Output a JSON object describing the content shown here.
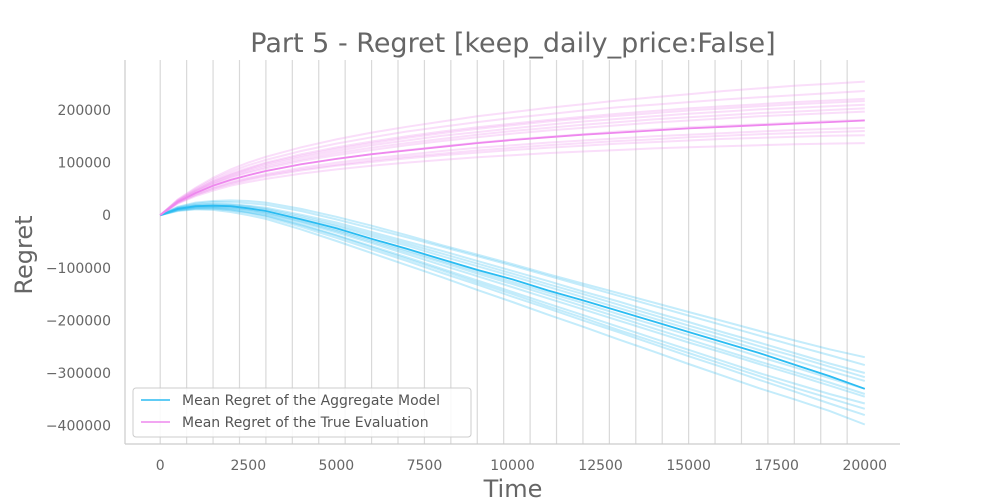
{
  "chart_data": {
    "type": "line",
    "title": "Part 5 - Regret [keep_daily_price:False]",
    "xlabel": "Time",
    "ylabel": "Regret",
    "xlim": [
      -1000,
      21000
    ],
    "ylim": [
      -435000,
      295000
    ],
    "xticks": [
      0,
      2500,
      5000,
      7500,
      10000,
      12500,
      15000,
      17500,
      20000
    ],
    "xtick_labels": [
      "0",
      "2500",
      "5000",
      "7500",
      "10000",
      "12500",
      "15000",
      "17500",
      "20000"
    ],
    "yticks": [
      -400000,
      -300000,
      -200000,
      -100000,
      0,
      100000,
      200000
    ],
    "ytick_labels": [
      "−400000",
      "−300000",
      "−200000",
      "−100000",
      "0",
      "100000",
      "200000"
    ],
    "vertical_grid": true,
    "horizontal_grid": false,
    "legend_position": "lower-left",
    "series": [
      {
        "name": "Mean Regret of the Aggregate Model",
        "color": "#2bbcf2",
        "x": [
          0,
          500,
          1000,
          1500,
          2000,
          2500,
          3000,
          4000,
          5000,
          6000,
          7000,
          8000,
          9000,
          10000,
          11000,
          12000,
          13000,
          14000,
          15000,
          16000,
          17000,
          18000,
          19000,
          20000
        ],
        "values": [
          0,
          12000,
          17000,
          18000,
          17000,
          13000,
          8000,
          -8000,
          -25000,
          -45000,
          -64000,
          -84000,
          -104000,
          -122000,
          -143000,
          -162000,
          -182000,
          -202000,
          -222000,
          -242000,
          -262000,
          -284000,
          -306000,
          -330000
        ],
        "runs": [
          {
            "values": [
              0,
              16000,
              24000,
              27000,
              28000,
              27000,
              24000,
              12000,
              -3000,
              -20000,
              -38000,
              -57000,
              -75000,
              -93000,
              -112000,
              -130000,
              -148000,
              -166000,
              -184000,
              -202000,
              -220000,
              -238000,
              -255000,
              -270000
            ]
          },
          {
            "values": [
              0,
              15000,
              22000,
              25000,
              25000,
              23000,
              20000,
              8000,
              -8000,
              -25000,
              -42000,
              -60000,
              -78000,
              -96000,
              -115000,
              -134000,
              -153000,
              -172000,
              -191000,
              -210000,
              -229000,
              -248000,
              -266000,
              -285000
            ]
          },
          {
            "values": [
              0,
              14000,
              20000,
              22000,
              21000,
              18000,
              14000,
              1000,
              -14000,
              -32000,
              -50000,
              -68000,
              -87000,
              -106000,
              -125000,
              -145000,
              -164000,
              -184000,
              -203000,
              -223000,
              -242000,
              -262000,
              -282000,
              -300000
            ]
          },
          {
            "values": [
              0,
              13000,
              18000,
              19000,
              18000,
              15000,
              10000,
              -5000,
              -21000,
              -40000,
              -58000,
              -78000,
              -97000,
              -116000,
              -136000,
              -156000,
              -176000,
              -196000,
              -216000,
              -236000,
              -256000,
              -276000,
              -296000,
              -315000
            ]
          },
          {
            "values": [
              0,
              12000,
              16000,
              17000,
              15000,
              11000,
              6000,
              -10000,
              -28000,
              -47000,
              -67000,
              -87000,
              -107000,
              -127000,
              -147000,
              -167000,
              -188000,
              -208000,
              -228000,
              -248000,
              -269000,
              -289000,
              -310000,
              -330000
            ]
          },
          {
            "values": [
              0,
              11000,
              15000,
              15000,
              13000,
              9000,
              3000,
              -14000,
              -33000,
              -53000,
              -74000,
              -95000,
              -116000,
              -137000,
              -158000,
              -179000,
              -200000,
              -221000,
              -242000,
              -262000,
              -283000,
              -303000,
              -324000,
              -345000
            ]
          },
          {
            "values": [
              0,
              10000,
              14000,
              14000,
              11000,
              6000,
              0,
              -18000,
              -38000,
              -59000,
              -80000,
              -102000,
              -124000,
              -146000,
              -168000,
              -190000,
              -212000,
              -234000,
              -256000,
              -278000,
              -300000,
              -320000,
              -340000,
              -358000
            ]
          },
          {
            "values": [
              0,
              9000,
              12000,
              12000,
              9000,
              4000,
              -3000,
              -22000,
              -43000,
              -65000,
              -87000,
              -110000,
              -132000,
              -155000,
              -177000,
              -200000,
              -222000,
              -245000,
              -268000,
              -290000,
              -313000,
              -335000,
              -358000,
              -380000
            ]
          },
          {
            "values": [
              0,
              8000,
              11000,
              10000,
              6000,
              0,
              -7000,
              -27000,
              -49000,
              -72000,
              -95000,
              -118000,
              -142000,
              -165000,
              -189000,
              -212000,
              -236000,
              -259000,
              -283000,
              -306000,
              -329000,
              -350000,
              -372000,
              -398000
            ]
          },
          {
            "values": [
              0,
              13000,
              19000,
              21000,
              20000,
              17000,
              12000,
              -2000,
              -18000,
              -36000,
              -54000,
              -73000,
              -92000,
              -111000,
              -131000,
              -150000,
              -170000,
              -190000,
              -210000,
              -229000,
              -249000,
              -268000,
              -288000,
              -308000
            ]
          },
          {
            "values": [
              0,
              11000,
              16000,
              16000,
              14000,
              10000,
              4000,
              -12000,
              -30000,
              -50000,
              -70000,
              -90000,
              -111000,
              -131000,
              -152000,
              -173000,
              -194000,
              -215000,
              -236000,
              -257000,
              -278000,
              -298000,
              -318000,
              -340000
            ]
          },
          {
            "values": [
              0,
              9000,
              13000,
              13000,
              10000,
              5000,
              -1000,
              -19000,
              -39000,
              -61000,
              -83000,
              -105000,
              -128000,
              -150000,
              -173000,
              -195000,
              -218000,
              -240000,
              -262000,
              -284000,
              -306000,
              -328000,
              -348000,
              -368000
            ]
          }
        ]
      },
      {
        "name": "Mean Regret of the True Evaluation",
        "color": "#ee88ee",
        "x": [
          0,
          500,
          1000,
          1500,
          2000,
          2500,
          3000,
          4000,
          5000,
          6000,
          7000,
          8000,
          9000,
          10000,
          11000,
          12000,
          13000,
          14000,
          15000,
          16000,
          17000,
          18000,
          19000,
          20000
        ],
        "values": [
          0,
          25000,
          42000,
          56000,
          67000,
          76000,
          84000,
          97000,
          107000,
          116000,
          123000,
          130000,
          137000,
          143000,
          148000,
          153000,
          157000,
          161000,
          165000,
          168000,
          171000,
          174000,
          177000,
          180000
        ],
        "runs": [
          {
            "values": [
              0,
              22000,
              36000,
              47000,
              56000,
              63000,
              69000,
              79000,
              87000,
              94000,
              100000,
              105000,
              110000,
              114000,
              118000,
              121000,
              124000,
              127000,
              129000,
              131000,
              133000,
              135000,
              136000,
              137000
            ]
          },
          {
            "values": [
              0,
              23000,
              38000,
              50000,
              59000,
              67000,
              74000,
              85000,
              94000,
              101000,
              108000,
              114000,
              119000,
              124000,
              128000,
              132000,
              136000,
              139000,
              142000,
              145000,
              147000,
              149000,
              151000,
              152000
            ]
          },
          {
            "values": [
              0,
              24000,
              40000,
              53000,
              63000,
              71000,
              78000,
              90000,
              100000,
              108000,
              115000,
              122000,
              128000,
              133000,
              138000,
              142000,
              146000,
              150000,
              153000,
              156000,
              159000,
              162000,
              164000,
              166000
            ]
          },
          {
            "values": [
              0,
              25000,
              42000,
              56000,
              67000,
              76000,
              84000,
              97000,
              107000,
              116000,
              124000,
              131000,
              138000,
              144000,
              149000,
              154000,
              159000,
              163000,
              167000,
              170000,
              173000,
              176000,
              179000,
              181000
            ]
          },
          {
            "values": [
              0,
              26000,
              44000,
              59000,
              71000,
              81000,
              89000,
              103000,
              114000,
              124000,
              133000,
              141000,
              148000,
              155000,
              161000,
              166000,
              171000,
              176000,
              180000,
              184000,
              188000,
              191000,
              194000,
              197000
            ]
          },
          {
            "values": [
              0,
              27000,
              46000,
              62000,
              75000,
              86000,
              95000,
              110000,
              122000,
              133000,
              142000,
              151000,
              158000,
              165000,
              172000,
              178000,
              183000,
              188000,
              193000,
              197000,
              201000,
              204000,
              207000,
              210000
            ]
          },
          {
            "values": [
              0,
              28000,
              48000,
              65000,
              79000,
              90000,
              100000,
              116000,
              129000,
              140000,
              150000,
              159000,
              167000,
              174000,
              181000,
              187000,
              193000,
              198000,
              203000,
              207000,
              211000,
              215000,
              218000,
              221000
            ]
          },
          {
            "values": [
              0,
              29000,
              50000,
              68000,
              83000,
              95000,
              105000,
              122000,
              136000,
              148000,
              159000,
              168000,
              177000,
              185000,
              192000,
              199000,
              205000,
              210000,
              215000,
              220000,
              224000,
              228000,
              232000,
              236000
            ]
          },
          {
            "values": [
              0,
              30000,
              52000,
              71000,
              87000,
              100000,
              111000,
              129000,
              144000,
              157000,
              168000,
              178000,
              188000,
              196000,
              204000,
              211000,
              218000,
              224000,
              230000,
              236000,
              241000,
              246000,
              250000,
              254000
            ]
          },
          {
            "values": [
              0,
              24000,
              39000,
              51000,
              61000,
              69000,
              76000,
              87000,
              96000,
              104000,
              111000,
              117000,
              123000,
              128000,
              133000,
              137000,
              141000,
              144000,
              148000,
              151000,
              154000,
              156000,
              158000,
              160000
            ]
          },
          {
            "values": [
              0,
              26000,
              45000,
              60000,
              73000,
              83000,
              92000,
              106000,
              118000,
              128000,
              137000,
              145000,
              153000,
              160000,
              166000,
              172000,
              177000,
              182000,
              186000,
              190000,
              194000,
              197000,
              200000,
              203000
            ]
          },
          {
            "values": [
              0,
              27000,
              47000,
              64000,
              77000,
              88000,
              98000,
              113000,
              126000,
              137000,
              147000,
              156000,
              164000,
              171000,
              178000,
              184000,
              189000,
              194000,
              199000,
              203000,
              207000,
              211000,
              214000,
              217000
            ]
          }
        ]
      }
    ]
  }
}
